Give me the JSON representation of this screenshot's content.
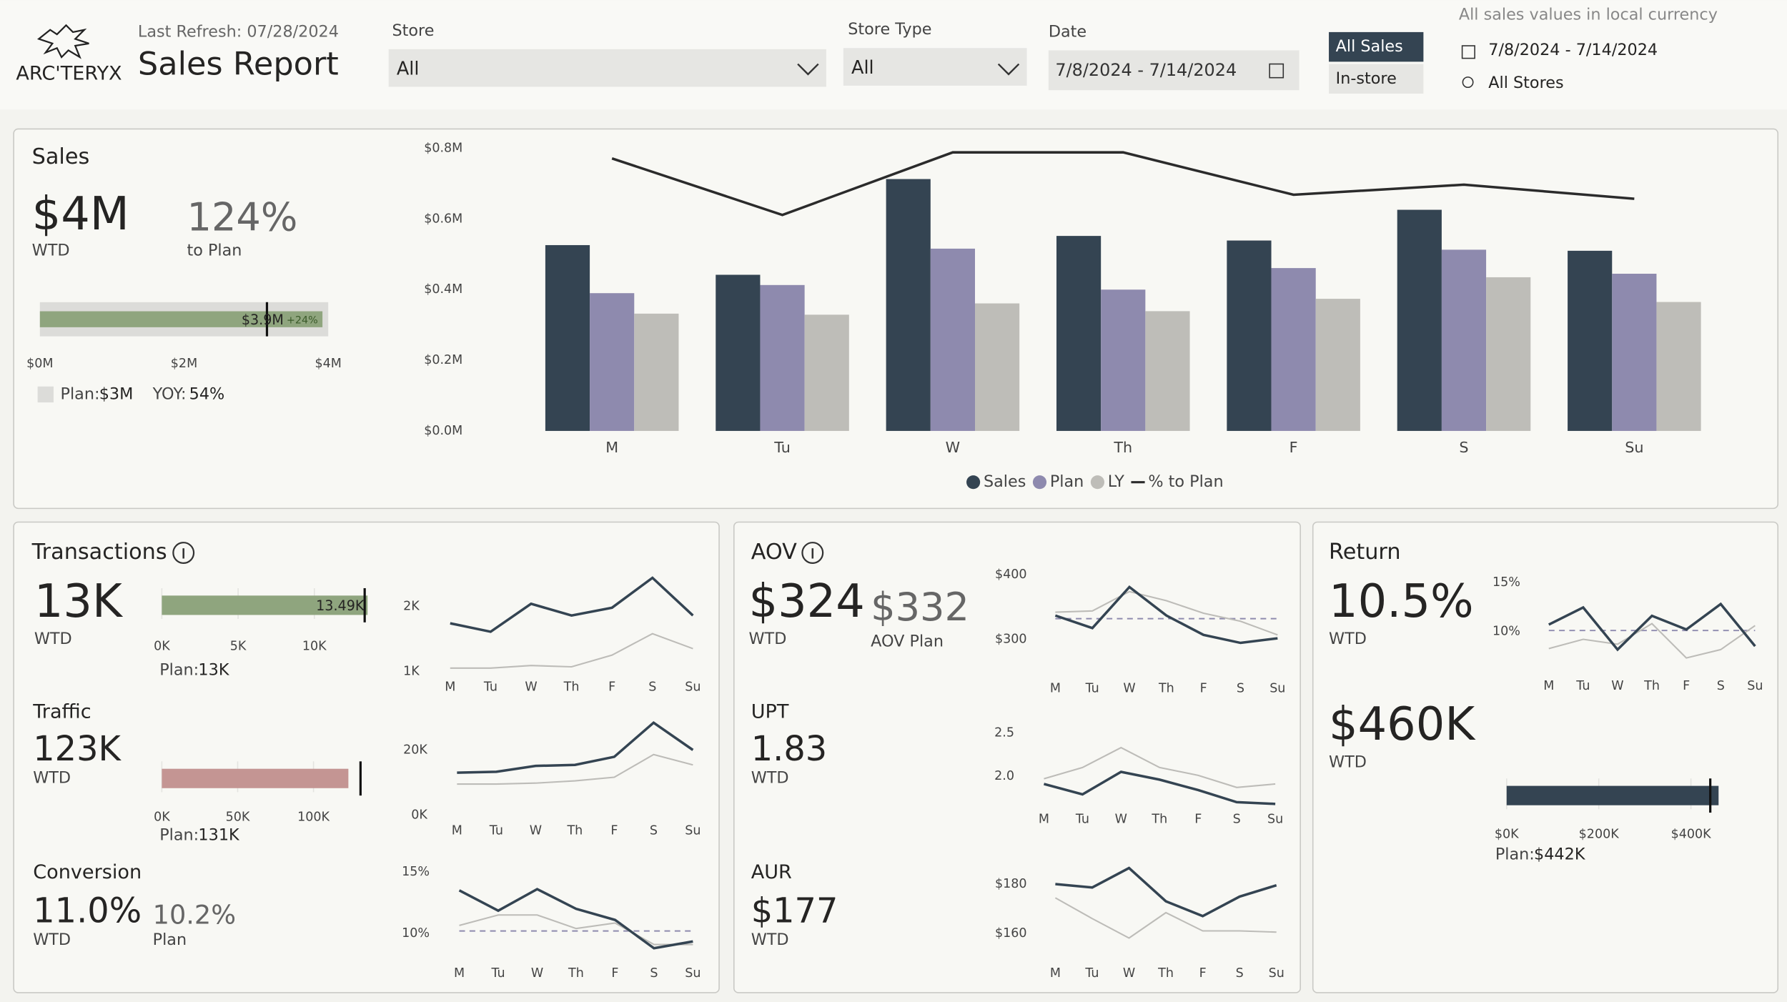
{
  "header": {
    "logo": "ARC'TERYX",
    "refresh": "Last Refresh: 07/28/2024",
    "title": "Sales Report"
  },
  "filters": [
    {
      "label": "Store",
      "value": "All"
    },
    {
      "label": "Store Type",
      "value": "All"
    },
    {
      "label": "Date",
      "value": "7/8/2024 - 7/14/2024"
    }
  ],
  "toggle": [
    "All Sales",
    "In-store"
  ],
  "context": {
    "note": "All sales values in local currency",
    "dates": "7/8/2024 - 7/14/2024",
    "stores": "All Stores"
  },
  "panels": {
    "sales": {
      "title": "Sales",
      "kpi": "$4M",
      "kpi_label": "WTD",
      "pct": "124%",
      "pct_label": "to Plan",
      "yoy_label": "YOY:",
      "yoy": "54%"
    },
    "transactions": {
      "title": "Transactions",
      "kpi": "13K",
      "kpi_label": "WTD",
      "traffic_title": "Traffic",
      "traffic": "123K",
      "traffic_label": "WTD",
      "conversion_title": "Conversion",
      "conversion": "11.0%",
      "conversion_label": "WTD",
      "conversion_plan": "10.2%",
      "conversion_plan_label": "Plan"
    },
    "aov": {
      "title": "AOV",
      "kpi": "$324",
      "kpi_label": "WTD",
      "plan": "$332",
      "plan_label": "AOV Plan",
      "upt_title": "UPT",
      "upt": "1.83",
      "upt_label": "WTD",
      "aur_title": "AUR",
      "aur": "$177",
      "aur_label": "WTD"
    },
    "return": {
      "title": "Return",
      "kpi": "10.5%",
      "kpi_label": "WTD",
      "value": "$460K",
      "value_label": "WTD"
    }
  },
  "chart_data": [
    {
      "type": "bar",
      "categories": [
        "M",
        "Tu",
        "W",
        "Th",
        "F",
        "S",
        "Su"
      ],
      "series": [
        {
          "name": "Sales",
          "color": "#344452",
          "values": [
            0.526,
            0.442,
            0.713,
            0.552,
            0.539,
            0.626,
            0.51
          ]
        },
        {
          "name": "Plan",
          "color": "#8e8aae",
          "values": [
            0.39,
            0.413,
            0.516,
            0.4,
            0.461,
            0.513,
            0.445
          ]
        },
        {
          "name": "LY",
          "color": "#bebdb8",
          "values": [
            0.332,
            0.329,
            0.361,
            0.339,
            0.374,
            0.435,
            0.365
          ]
        },
        {
          "name": "% to Plan",
          "type": "line",
          "axis": "y2",
          "color": "#2b2b2b",
          "values": [
            135,
            107,
            138,
            138,
            117,
            122,
            115
          ]
        }
      ],
      "ylim": [
        0,
        0.8
      ],
      "yticks": [
        {
          "value": 0,
          "label": "$0.0M"
        },
        {
          "value": 0.2,
          "label": "$0.2M"
        },
        {
          "value": 0.4,
          "label": "$0.4M"
        },
        {
          "value": 0.6,
          "label": "$0.6M"
        },
        {
          "value": 0.8,
          "label": "$0.8M"
        }
      ],
      "y2lim": [
        0,
        140
      ],
      "legend": "bottom"
    },
    {
      "type": "bullet",
      "value": 3.92,
      "value_label": "$3.9M",
      "annotation": "+24%",
      "target": 3.15,
      "target_name": "Plan:",
      "target_label": "$3M",
      "color": "#8fa57e",
      "xlim": [
        0,
        4
      ],
      "xticks": [
        {
          "value": 0,
          "label": "$0M"
        },
        {
          "value": 2,
          "label": "$2M"
        },
        {
          "value": 4,
          "label": "$4M"
        }
      ]
    },
    {
      "type": "bullet",
      "value": 13.49,
      "value_label": "13.49K",
      "target": 13.3,
      "target_name": "Plan:",
      "target_label": "13K",
      "color": "#8fa57e",
      "xlim": [
        0,
        13.6
      ],
      "xticks": [
        {
          "value": 0,
          "label": "0K"
        },
        {
          "value": 5,
          "label": "5K"
        },
        {
          "value": 10,
          "label": "10K"
        }
      ]
    },
    {
      "type": "line",
      "categories": [
        "M",
        "Tu",
        "W",
        "Th",
        "F",
        "S",
        "Su"
      ],
      "series": [
        {
          "color": "#344452",
          "values": [
            1.74,
            1.61,
            2.04,
            1.86,
            1.98,
            2.44,
            1.86
          ]
        },
        {
          "color": "#bdbcb8",
          "values": [
            1.05,
            1.05,
            1.09,
            1.07,
            1.25,
            1.58,
            1.35
          ]
        }
      ],
      "ylim": [
        0.9,
        2.5
      ],
      "yticks": [
        {
          "value": 1,
          "label": "1K"
        },
        {
          "value": 2,
          "label": "2K"
        }
      ]
    },
    {
      "type": "bullet",
      "value": 123,
      "target": 131,
      "target_name": "Plan:",
      "target_label": "131K",
      "color": "#c49593",
      "xlim": [
        0,
        131.5
      ],
      "xticks": [
        {
          "value": 0,
          "label": "0K"
        },
        {
          "value": 50,
          "label": "50K"
        },
        {
          "value": 100,
          "label": "100K"
        }
      ]
    },
    {
      "type": "line",
      "categories": [
        "M",
        "Tu",
        "W",
        "Th",
        "F",
        "S",
        "Su"
      ],
      "series": [
        {
          "color": "#344452",
          "values": [
            13.0,
            13.3,
            15.1,
            15.4,
            17.9,
            28.4,
            20.0
          ]
        },
        {
          "color": "#bdbcb8",
          "values": [
            9.5,
            9.5,
            9.8,
            10.5,
            11.6,
            18.6,
            15.4
          ]
        }
      ],
      "ylim": [
        0,
        30
      ],
      "yticks": [
        {
          "value": 0,
          "label": "0K"
        },
        {
          "value": 20,
          "label": "20K"
        }
      ]
    },
    {
      "type": "line",
      "categories": [
        "M",
        "Tu",
        "W",
        "Th",
        "F",
        "S",
        "Su"
      ],
      "series": [
        {
          "color": "#344452",
          "values": [
            13.5,
            11.85,
            13.6,
            12.0,
            11.1,
            8.8,
            9.35
          ]
        },
        {
          "color": "#bdbcb8",
          "values": [
            10.65,
            11.5,
            11.5,
            10.4,
            10.85,
            9.1,
            9.1
          ]
        }
      ],
      "reference": 10.2,
      "ylim": [
        8,
        15.5
      ],
      "yticks": [
        {
          "value": 10,
          "label": "10%"
        },
        {
          "value": 15,
          "label": "15%"
        }
      ]
    },
    {
      "type": "line",
      "categories": [
        "M",
        "Tu",
        "W",
        "Th",
        "F",
        "S",
        "Su"
      ],
      "series": [
        {
          "color": "#344452",
          "values": [
            336.8,
            317.5,
            380.7,
            336.8,
            307,
            294.7,
            301.8
          ]
        },
        {
          "color": "#bdbcb8",
          "values": [
            342,
            343.9,
            373.7,
            359.6,
            340.4,
            328,
            307
          ]
        }
      ],
      "reference": 332,
      "ylim": [
        280,
        410
      ],
      "yticks": [
        {
          "value": 300,
          "label": "$300"
        },
        {
          "value": 400,
          "label": "$400"
        }
      ]
    },
    {
      "type": "line",
      "categories": [
        "M",
        "Tu",
        "W",
        "Th",
        "F",
        "S",
        "Su"
      ],
      "series": [
        {
          "color": "#344452",
          "values": [
            1.91,
            1.79,
            2.05,
            1.96,
            1.84,
            1.7,
            1.68
          ]
        },
        {
          "color": "#bdbcb8",
          "values": [
            1.97,
            2.1,
            2.33,
            2.1,
            2.01,
            1.87,
            1.91
          ]
        }
      ],
      "ylim": [
        1.6,
        2.6
      ],
      "yticks": [
        {
          "value": 2,
          "label": "2.0"
        },
        {
          "value": 2.5,
          "label": "2.5"
        }
      ]
    },
    {
      "type": "line",
      "categories": [
        "M",
        "Tu",
        "W",
        "Th",
        "F",
        "S",
        "Su"
      ],
      "series": [
        {
          "color": "#344452",
          "values": [
            180,
            178.6,
            186.5,
            173,
            167,
            174.9,
            179.5
          ]
        },
        {
          "color": "#bdbcb8",
          "values": [
            174.4,
            166,
            158.1,
            168.4,
            161,
            161,
            160.5
          ]
        }
      ],
      "ylim": [
        155,
        190
      ],
      "yticks": [
        {
          "value": 160,
          "label": "$160"
        },
        {
          "value": 180,
          "label": "$180"
        }
      ]
    },
    {
      "type": "line",
      "categories": [
        "M",
        "Tu",
        "W",
        "Th",
        "F",
        "S",
        "Su"
      ],
      "series": [
        {
          "color": "#344452",
          "values": [
            10.7,
            12.45,
            8.15,
            11.6,
            10.2,
            12.8,
            8.5
          ]
        },
        {
          "color": "#bdbcb8",
          "values": [
            8.25,
            9.2,
            8.7,
            10.8,
            7.3,
            8.15,
            10.6
          ]
        }
      ],
      "reference": 10.1,
      "ylim": [
        6.5,
        16
      ],
      "yticks": [
        {
          "value": 10,
          "label": "10%"
        },
        {
          "value": 15,
          "label": "15%"
        }
      ]
    },
    {
      "type": "bullet",
      "value": 460,
      "target": 442,
      "target_name": "Plan:",
      "target_label": "$442K",
      "color": "#344452",
      "xlim": [
        0,
        470
      ],
      "xticks": [
        {
          "value": 0,
          "label": "$0K"
        },
        {
          "value": 200,
          "label": "$200K"
        },
        {
          "value": 400,
          "label": "$400K"
        }
      ]
    }
  ]
}
